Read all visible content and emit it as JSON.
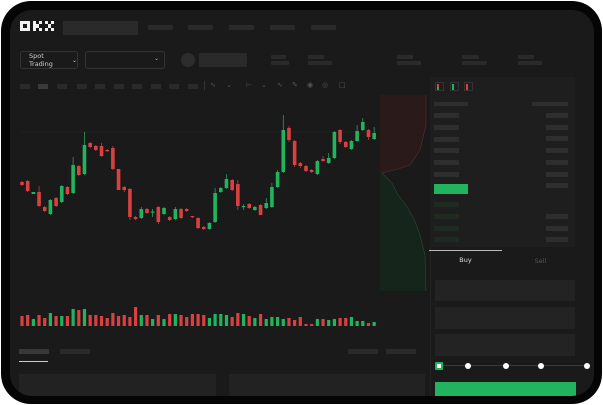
{
  "header": {
    "logo": "OKX"
  },
  "market": {
    "pair_selector": "Spot Trading",
    "chevron": "chevron-down-icon"
  },
  "trade": {
    "buy_tab": "Buy",
    "sell_tab": "Sell",
    "slider_level_percent": 0,
    "buy_color": "#22b35e"
  },
  "colors": {
    "up": "#22b35e",
    "down": "#d9403f",
    "background": "#1a1a1a"
  },
  "chart_data": {
    "type": "candlestick",
    "ohlc": [
      [
        58,
        59,
        54,
        55
      ],
      [
        59,
        60,
        48,
        49
      ],
      [
        46,
        48,
        46,
        48
      ],
      [
        48,
        54,
        33,
        34
      ],
      [
        33,
        34,
        28,
        29
      ],
      [
        26,
        41,
        25,
        40
      ],
      [
        42,
        43,
        33,
        34
      ],
      [
        38,
        55,
        37,
        54
      ],
      [
        53,
        54,
        45,
        46
      ],
      [
        47,
        83,
        46,
        75
      ],
      [
        74,
        75,
        64,
        65
      ],
      [
        66,
        108,
        65,
        95
      ],
      [
        97,
        98,
        92,
        93
      ],
      [
        94,
        95,
        89,
        90
      ],
      [
        94,
        97,
        83,
        84
      ],
      [
        90,
        91,
        88,
        89
      ],
      [
        92,
        94,
        70,
        71
      ],
      [
        71,
        71,
        50,
        50
      ],
      [
        53,
        54,
        48,
        50
      ],
      [
        51,
        52,
        20,
        23
      ],
      [
        23,
        24,
        20,
        21
      ],
      [
        22,
        33,
        21,
        31
      ],
      [
        31,
        32,
        26,
        27
      ],
      [
        28,
        31,
        23,
        28.5
      ],
      [
        33,
        34,
        16,
        18
      ],
      [
        26,
        33,
        25,
        32
      ],
      [
        23,
        24,
        19,
        20
      ],
      [
        21,
        33,
        20,
        31
      ],
      [
        31,
        32,
        21,
        22
      ],
      [
        31,
        32,
        28,
        29
      ],
      [
        24,
        24,
        22,
        23
      ],
      [
        22,
        23,
        11,
        12
      ],
      [
        13,
        14,
        10,
        11
      ],
      [
        11,
        18,
        10,
        17
      ],
      [
        18,
        52,
        17,
        47
      ],
      [
        48,
        53,
        47,
        52
      ],
      [
        52,
        66,
        51,
        61
      ],
      [
        60,
        61,
        49,
        50
      ],
      [
        56,
        60,
        30,
        34
      ],
      [
        33,
        36,
        30,
        34
      ],
      [
        36,
        37,
        31,
        32
      ],
      [
        30,
        34,
        29,
        33
      ],
      [
        35,
        36,
        25,
        25
      ],
      [
        32,
        42,
        31,
        37
      ],
      [
        33,
        57,
        32,
        53
      ],
      [
        53,
        70,
        52,
        68
      ],
      [
        68,
        125,
        67,
        110
      ],
      [
        112,
        114,
        98,
        100
      ],
      [
        99,
        100,
        73,
        75
      ],
      [
        77,
        78,
        72,
        74
      ],
      [
        74,
        75,
        68,
        69
      ],
      [
        70,
        71,
        67,
        68
      ],
      [
        66,
        80,
        65,
        79
      ],
      [
        81,
        84,
        78,
        79
      ],
      [
        77,
        87,
        76,
        82
      ],
      [
        82,
        109,
        81,
        108
      ],
      [
        110,
        111,
        96,
        98
      ],
      [
        98,
        99,
        92,
        93
      ],
      [
        91,
        100,
        90,
        99
      ],
      [
        99,
        115,
        98,
        109
      ],
      [
        110,
        122,
        109,
        118
      ],
      [
        110,
        111,
        100,
        103
      ],
      [
        101,
        113,
        100,
        107
      ]
    ],
    "volume": [
      10,
      11,
      7,
      11,
      8,
      13,
      10,
      10,
      10,
      17,
      16,
      17,
      11,
      11,
      10,
      8,
      13,
      10,
      11,
      9,
      19,
      11,
      11,
      7,
      11,
      7,
      12,
      12,
      11,
      9,
      12,
      12,
      11,
      8,
      12,
      12,
      11,
      9,
      13,
      12,
      10,
      8,
      12,
      7,
      9,
      9,
      7,
      8,
      6,
      9,
      2,
      2,
      7,
      7,
      6,
      7,
      8,
      8,
      9,
      5,
      5,
      3,
      4
    ]
  }
}
